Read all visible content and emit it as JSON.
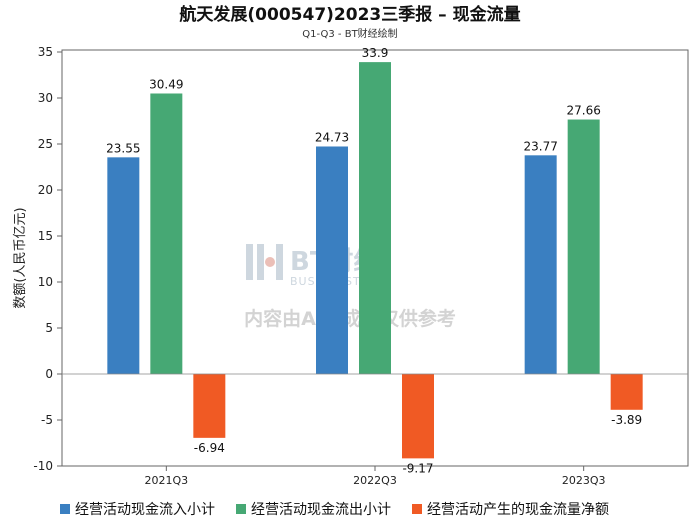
{
  "chart_data": {
    "type": "bar",
    "title": "航天发展(000547)2023三季报 – 现金流量",
    "subtitle": "Q1-Q3 - BT财经绘制",
    "ylabel": "数额(人民币亿元)",
    "xlabel": "",
    "categories": [
      "2021Q3",
      "2022Q3",
      "2023Q3"
    ],
    "ylim": [
      -10,
      35
    ],
    "yticks": [
      -10,
      -5,
      0,
      5,
      10,
      15,
      20,
      25,
      30,
      35
    ],
    "grid": false,
    "legend_position": "bottom",
    "series": [
      {
        "name": "经营活动现金流入小计",
        "color": "#3a7fc1",
        "values": [
          23.55,
          24.73,
          23.77
        ]
      },
      {
        "name": "经营活动现金流出小计",
        "color": "#46a874",
        "values": [
          30.49,
          33.9,
          27.66
        ]
      },
      {
        "name": "经营活动产生的现金流量净额",
        "color": "#f05a24",
        "values": [
          -6.94,
          -9.17,
          -3.89
        ]
      }
    ]
  },
  "watermark": {
    "logo": "BT财经",
    "logo_sub": "BUSINESSTIMES",
    "note": "内容由AI生成，仅供参考"
  }
}
